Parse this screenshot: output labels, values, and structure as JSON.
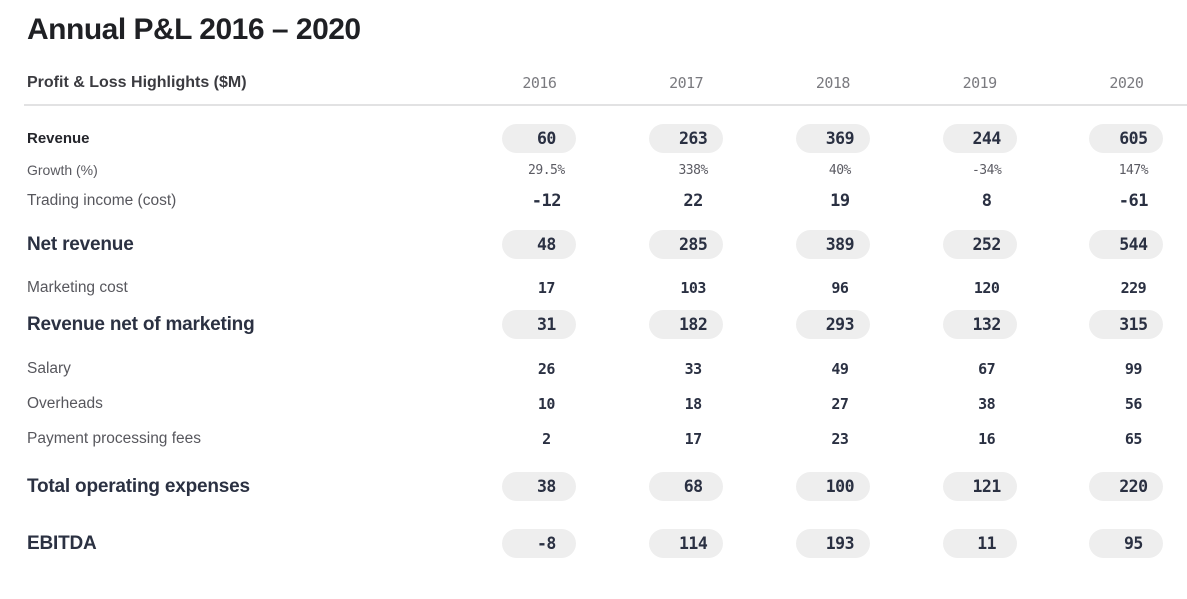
{
  "title": "Annual P&L 2016 – 2020",
  "chart_data": {
    "type": "table",
    "title": "Annual P&L 2016 – 2020",
    "columns": [
      "Profit & Loss Highlights ($M)",
      "2016",
      "2017",
      "2018",
      "2019",
      "2020"
    ],
    "rows": [
      {
        "label": "Revenue",
        "emphasis": "pill",
        "values": [
          "60",
          "263",
          "369",
          "244",
          "605"
        ]
      },
      {
        "label": "Growth (%)",
        "emphasis": "muted",
        "values": [
          "29.5%",
          "338%",
          "40%",
          "-34%",
          "147%"
        ]
      },
      {
        "label": "Trading income (cost)",
        "emphasis": "plain",
        "values": [
          "-12",
          "22",
          "19",
          "8",
          "-61"
        ]
      },
      {
        "label": "Net revenue",
        "emphasis": "pill",
        "values": [
          "48",
          "285",
          "389",
          "252",
          "544"
        ]
      },
      {
        "label": "Marketing cost",
        "emphasis": "plain",
        "values": [
          "17",
          "103",
          "96",
          "120",
          "229"
        ]
      },
      {
        "label": "Revenue net of marketing",
        "emphasis": "pill",
        "values": [
          "31",
          "182",
          "293",
          "132",
          "315"
        ]
      },
      {
        "label": "Salary",
        "emphasis": "plain",
        "values": [
          "26",
          "33",
          "49",
          "67",
          "99"
        ]
      },
      {
        "label": "Overheads",
        "emphasis": "plain",
        "values": [
          "10",
          "18",
          "27",
          "38",
          "56"
        ]
      },
      {
        "label": "Payment processing fees",
        "emphasis": "plain",
        "values": [
          "2",
          "17",
          "23",
          "16",
          "65"
        ]
      },
      {
        "label": "Total operating expenses",
        "emphasis": "pill",
        "values": [
          "38",
          "68",
          "100",
          "121",
          "220"
        ]
      },
      {
        "label": "EBITDA",
        "emphasis": "pill",
        "values": [
          "-8",
          "114",
          "193",
          "11",
          "95"
        ]
      }
    ]
  },
  "colors": {
    "pill_background": "#eeeeee",
    "value_text": "#2a3042",
    "muted_text": "#5b5b63",
    "year_header": "#7a7a7f",
    "title_text": "#1f2024",
    "divider": "#e2e2e3"
  }
}
